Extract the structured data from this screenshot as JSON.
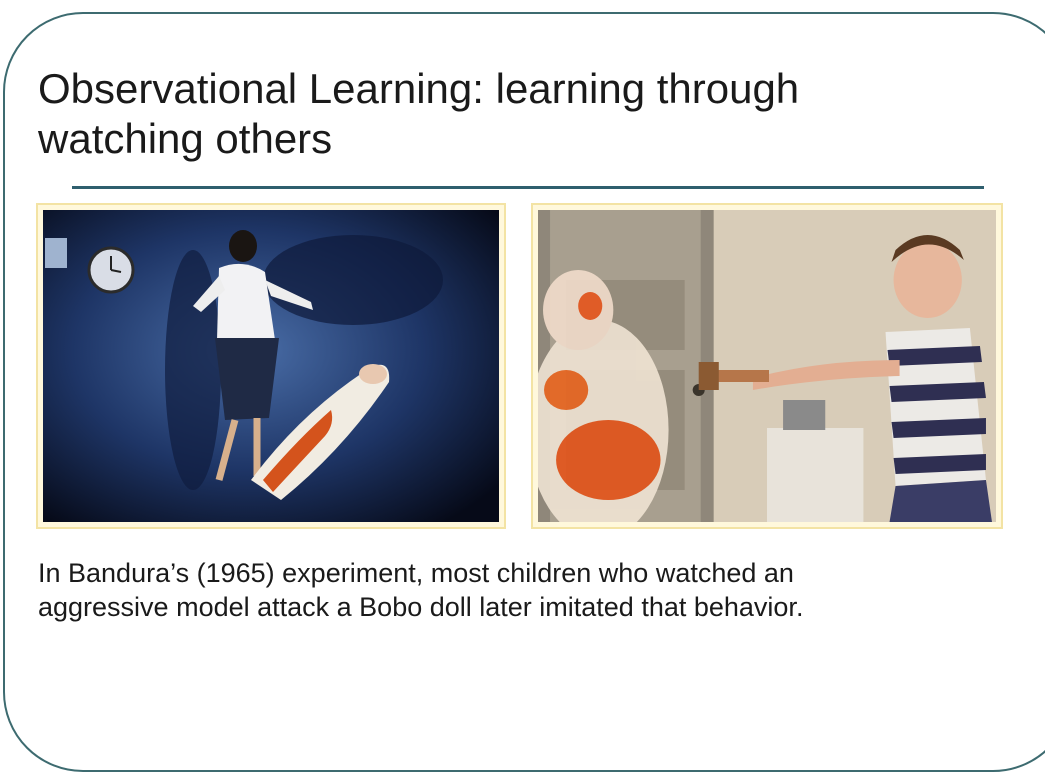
{
  "slide": {
    "title_line1": "Observational Learning: learning through",
    "title_line2": "watching others",
    "photos": {
      "left": "adult model hitting Bobo doll",
      "right": "child hitting Bobo doll"
    },
    "caption_line1": "In Bandura’s (1965) experiment, most children who watched an",
    "caption_line2": "aggressive model attack a Bobo doll later imitated that behavior."
  },
  "colors": {
    "frame": "#3d6b70",
    "rule": "#2f5f6e",
    "photo_border": "#f3e3a4",
    "text": "#1a1a1a"
  }
}
